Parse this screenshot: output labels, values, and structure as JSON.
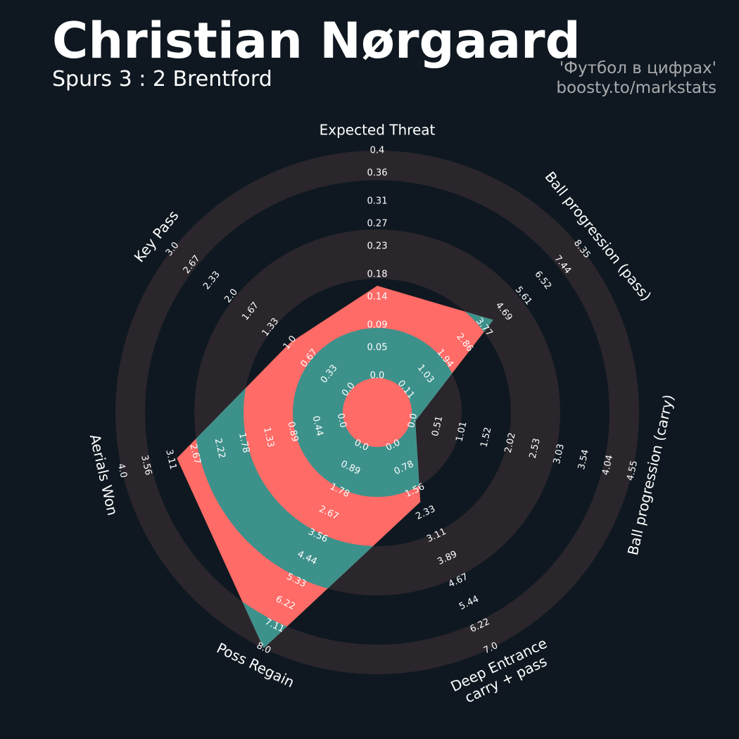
{
  "chart_data": {
    "type": "radar",
    "title": "Christian Nørgaard",
    "subtitle": "Spurs 3 : 2 Brentford",
    "credits": [
      "'Футбол в цифрах'",
      "boosty.to/markstats"
    ],
    "colors": {
      "radar": "#ff6b67",
      "rings": "#3d918b"
    },
    "params": [
      {
        "label": "Expected Threat",
        "lim": [
          0,
          0.4
        ],
        "ticks": [
          {
            "value": 0,
            "label": "0.0"
          },
          0.05,
          0.09,
          0.14,
          0.18,
          0.23,
          0.27,
          0.31,
          0.36,
          0.4
        ],
        "value": 0.16
      },
      {
        "label": "Ball progression (pass)",
        "lim": [
          0.11,
          8.35
        ],
        "ticks": [
          0.11,
          1.03,
          1.94,
          2.86,
          3.77,
          4.69,
          5.61,
          6.52,
          7.44,
          8.35
        ],
        "value": 4.2
      },
      {
        "label": "Ball progression (carry)",
        "lim": [
          0,
          4.55
        ],
        "ticks": [
          {
            "value": 0,
            "label": "0.0"
          },
          0.51,
          1.01,
          1.52,
          2.02,
          2.53,
          3.03,
          3.54,
          4.04,
          4.55
        ],
        "value": 0.05
      },
      {
        "label": [
          "Deep Entrance",
          "carry + pass"
        ],
        "lim": [
          0,
          7.0
        ],
        "ticks": [
          {
            "value": 0,
            "label": "0.0"
          },
          0.78,
          1.56,
          2.33,
          3.11,
          3.89,
          4.67,
          5.44,
          6.22,
          {
            "value": 7,
            "label": "7.0"
          }
        ],
        "value": 1.95
      },
      {
        "label": "Poss Regain",
        "lim": [
          0,
          8.0
        ],
        "ticks": [
          {
            "value": 0,
            "label": "0.0"
          },
          0.89,
          1.78,
          2.67,
          3.56,
          4.44,
          5.33,
          6.22,
          7.11,
          {
            "value": 8,
            "label": "8.0"
          }
        ],
        "value": 8.0
      },
      {
        "label": "Aerials Won",
        "lim": [
          0,
          4.0
        ],
        "ticks": [
          {
            "value": 0,
            "label": "0.0"
          },
          0.44,
          0.89,
          1.33,
          1.78,
          2.22,
          2.67,
          3.11,
          3.56,
          {
            "value": 4,
            "label": "4.0"
          }
        ],
        "value": 3.0
      },
      {
        "label": "Key Pass",
        "lim": [
          0,
          3.0
        ],
        "ticks": [
          {
            "value": 0,
            "label": "0.0"
          },
          0.33,
          0.67,
          {
            "value": 1,
            "label": "1.0"
          },
          1.33,
          1.67,
          {
            "value": 2,
            "label": "2.0"
          },
          2.33,
          2.67,
          {
            "value": 3,
            "label": "3.0"
          }
        ],
        "value": 1.0
      }
    ]
  }
}
